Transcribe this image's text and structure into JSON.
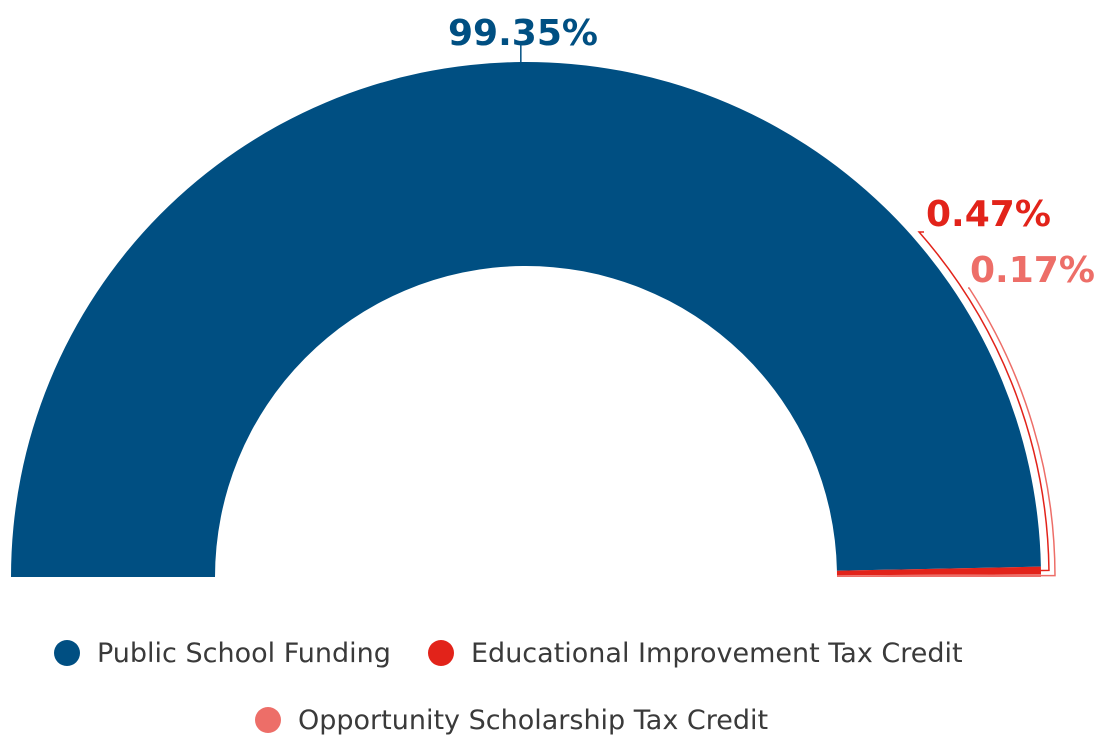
{
  "chart_data": {
    "type": "pie",
    "variant": "semi-donut",
    "title": "",
    "series": [
      {
        "name": "Public School Funding",
        "value": 99.35,
        "label": "99.35%",
        "color": "#004f82"
      },
      {
        "name": "Educational Improvement Tax Credit",
        "value": 0.47,
        "label": "0.47%",
        "color": "#e2231a"
      },
      {
        "name": "Opportunity Scholarship Tax Credit",
        "value": 0.17,
        "label": "0.17%",
        "color": "#ed6e68"
      }
    ],
    "legend": {
      "position": "bottom"
    }
  }
}
